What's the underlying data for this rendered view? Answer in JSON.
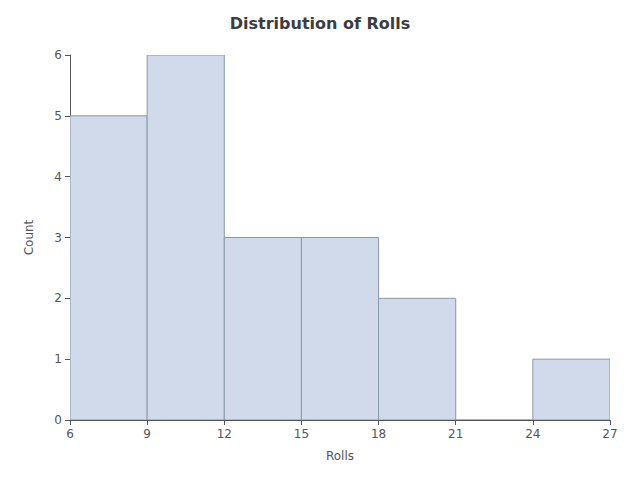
{
  "chart_data": {
    "type": "histogram",
    "title": "Distribution of Rolls",
    "xlabel": "Rolls",
    "ylabel": "Count",
    "bins": [
      6,
      9,
      12,
      15,
      18,
      21,
      24,
      27
    ],
    "values": [
      5,
      6,
      3,
      3,
      2,
      0,
      1
    ],
    "color": "#d0daea",
    "xlim": [
      6,
      27
    ],
    "xticks": [
      6,
      9,
      12,
      15,
      18,
      21,
      24,
      27
    ],
    "ylim": [
      0,
      6
    ],
    "yticks": [
      0,
      1,
      2,
      3,
      4,
      5,
      6
    ],
    "grid": false
  }
}
